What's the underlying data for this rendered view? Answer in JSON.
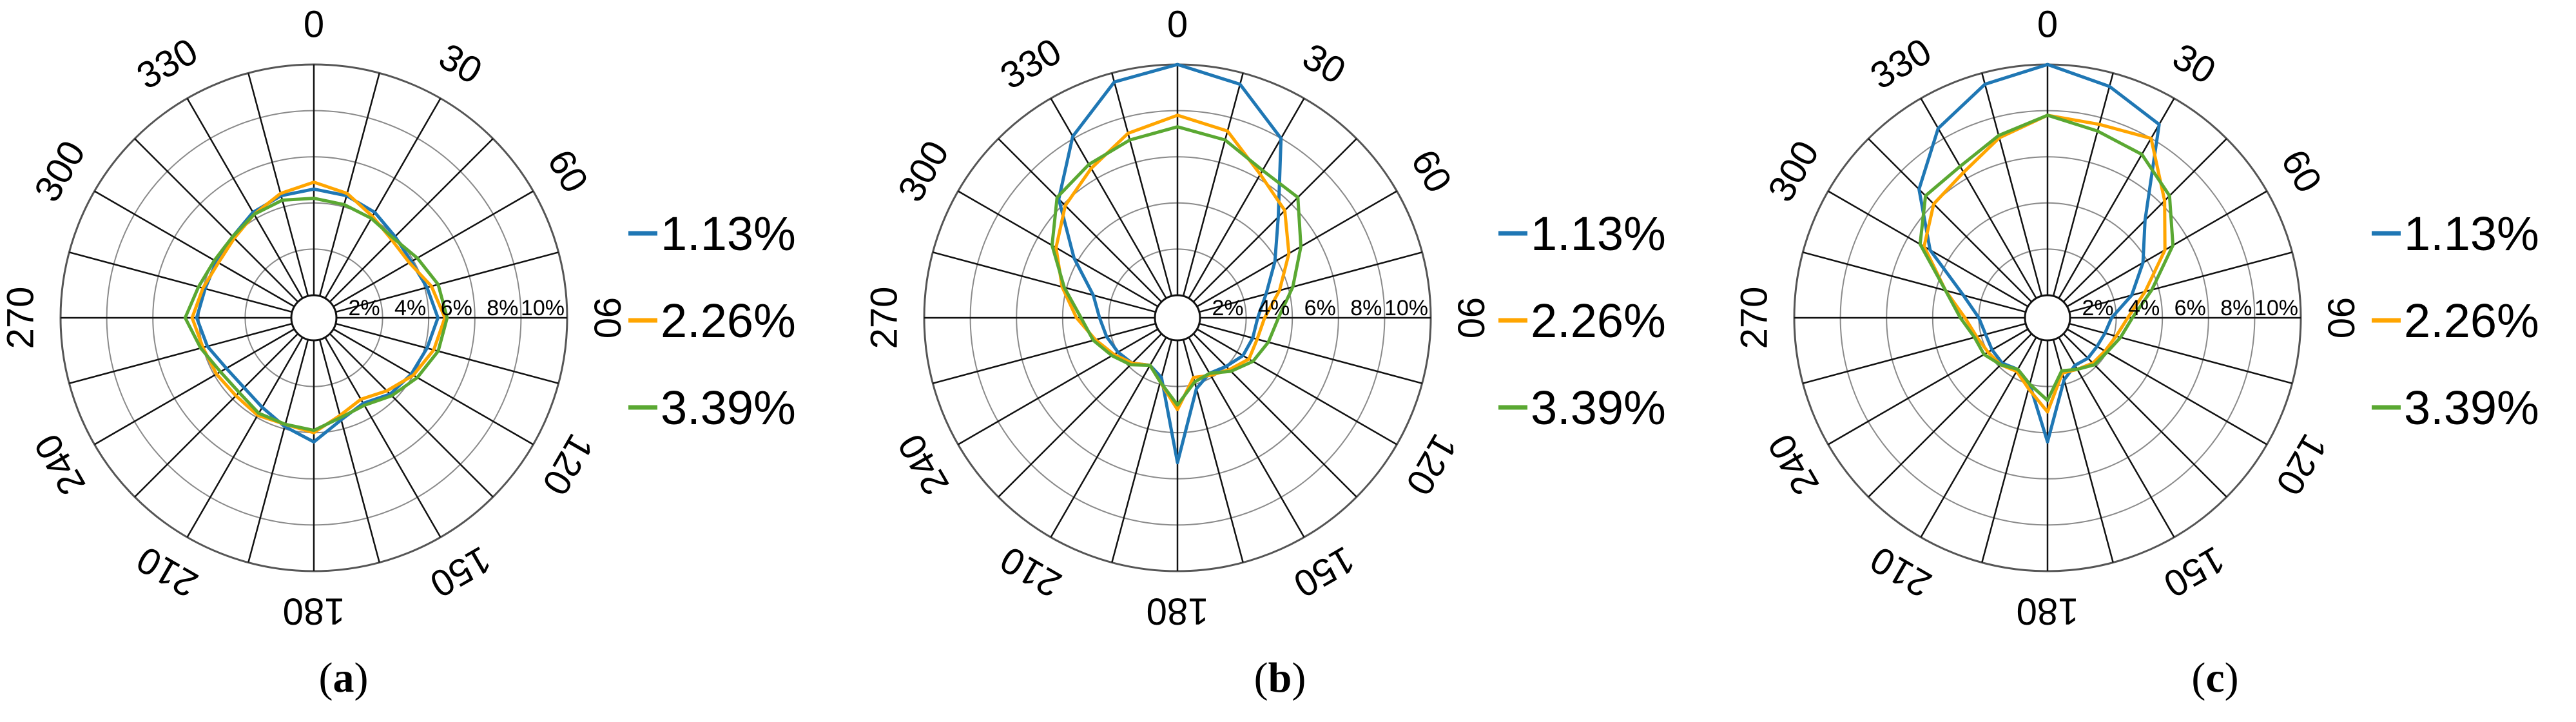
{
  "chart_data": [
    {
      "type": "polar-line",
      "caption": "(a)",
      "angle_ticks": [
        "0",
        "30",
        "60",
        "90",
        "120",
        "150",
        "180",
        "210",
        "240",
        "270",
        "300",
        "330"
      ],
      "radial_ticks": [
        "2%",
        "4%",
        "6%",
        "8%",
        "10%"
      ],
      "rlim": [
        0,
        10
      ],
      "theta": [
        0,
        15,
        30,
        45,
        60,
        75,
        90,
        105,
        120,
        135,
        150,
        165,
        180,
        195,
        210,
        225,
        240,
        255,
        270,
        285,
        300,
        315,
        330,
        345
      ],
      "series": [
        {
          "name": "1.13%",
          "color": "#1f77b4",
          "values": [
            4.6,
            4.5,
            4.3,
            4.0,
            3.9,
            4.1,
            4.4,
            4.1,
            3.9,
            3.7,
            3.3,
            3.6,
            4.4,
            3.9,
            3.5,
            3.3,
            3.4,
            3.8,
            4.1,
            3.9,
            3.9,
            4.0,
            4.3,
            4.5
          ]
        },
        {
          "name": "2.26%",
          "color": "#ffa500",
          "values": [
            4.9,
            4.6,
            4.1,
            3.8,
            3.8,
            4.3,
            4.7,
            4.4,
            4.0,
            3.5,
            3.1,
            3.4,
            4.0,
            3.8,
            3.9,
            3.8,
            3.9,
            4.0,
            4.3,
            4.0,
            3.8,
            3.9,
            4.2,
            4.6
          ]
        },
        {
          "name": "3.39%",
          "color": "#5aa832",
          "values": [
            4.2,
            4.1,
            4.0,
            3.9,
            4.2,
            4.6,
            4.8,
            4.6,
            4.2,
            3.8,
            3.4,
            3.5,
            3.9,
            3.8,
            3.8,
            3.6,
            3.7,
            4.1,
            4.6,
            4.2,
            4.0,
            4.0,
            4.2,
            4.3
          ]
        }
      ]
    },
    {
      "type": "polar-line",
      "caption": "(b)",
      "angle_ticks": [
        "0",
        "30",
        "60",
        "90",
        "120",
        "150",
        "180",
        "210",
        "240",
        "270",
        "300",
        "330"
      ],
      "radial_ticks": [
        "2%",
        "4%",
        "6%",
        "8%",
        "10%"
      ],
      "rlim": [
        0,
        10
      ],
      "theta": [
        0,
        15,
        30,
        45,
        60,
        75,
        90,
        105,
        120,
        135,
        150,
        165,
        180,
        195,
        210,
        225,
        240,
        255,
        270,
        285,
        300,
        315,
        330,
        345
      ],
      "series": [
        {
          "name": "1.13%",
          "color": "#1f77b4",
          "values": [
            10.0,
            9.5,
            8.0,
            5.2,
            3.9,
            3.0,
            2.5,
            2.4,
            2.3,
            2.0,
            1.8,
            2.2,
            5.3,
            1.7,
            1.4,
            1.8,
            2.0,
            2.2,
            2.4,
            2.8,
            4.2,
            6.3,
            8.1,
            9.6
          ]
        },
        {
          "name": "2.26%",
          "color": "#ffa500",
          "values": [
            7.8,
            7.4,
            6.2,
            5.6,
            4.6,
            3.6,
            2.8,
            2.6,
            2.6,
            2.2,
            1.9,
            1.7,
            3.0,
            1.9,
            1.4,
            1.8,
            2.2,
            2.7,
            3.4,
            4.2,
            5.1,
            5.9,
            6.5,
            7.3
          ]
        },
        {
          "name": "3.39%",
          "color": "#5aa832",
          "values": [
            7.3,
            7.0,
            6.4,
            6.4,
            5.2,
            4.2,
            3.4,
            3.1,
            2.8,
            2.3,
            1.8,
            1.9,
            2.8,
            1.9,
            1.4,
            1.9,
            2.3,
            2.8,
            3.2,
            4.1,
            5.3,
            6.4,
            6.7,
            7.0
          ]
        }
      ]
    },
    {
      "type": "polar-line",
      "caption": "(c)",
      "angle_ticks": [
        "0",
        "30",
        "60",
        "90",
        "120",
        "150",
        "180",
        "210",
        "240",
        "270",
        "300",
        "330"
      ],
      "radial_ticks": [
        "2%",
        "4%",
        "6%",
        "8%",
        "10%"
      ],
      "rlim": [
        0,
        10
      ],
      "theta": [
        0,
        15,
        30,
        45,
        60,
        75,
        90,
        105,
        120,
        135,
        150,
        165,
        180,
        195,
        210,
        225,
        240,
        255,
        270,
        285,
        300,
        315,
        330,
        345
      ],
      "series": [
        {
          "name": "1.13%",
          "color": "#1f77b4",
          "values": [
            10.0,
            9.4,
            8.7,
            5.0,
            3.8,
            2.8,
            1.8,
            1.6,
            1.5,
            1.5,
            1.4,
            1.8,
            4.4,
            2.0,
            1.6,
            1.8,
            1.8,
            1.8,
            2.0,
            2.8,
            4.9,
            6.9,
            8.5,
            9.5
          ]
        },
        {
          "name": "2.26%",
          "color": "#ffa500",
          "values": [
            7.8,
            7.7,
            8.0,
            6.2,
            4.9,
            3.4,
            2.5,
            2.1,
            1.9,
            1.8,
            1.6,
            1.5,
            3.1,
            2.2,
            1.7,
            1.9,
            2.0,
            2.2,
            2.6,
            3.6,
            5.2,
            6.0,
            6.3,
            7.1
          ]
        },
        {
          "name": "3.39%",
          "color": "#5aa832",
          "values": [
            7.8,
            7.4,
            7.2,
            6.5,
            5.3,
            3.7,
            2.7,
            2.3,
            2.0,
            1.9,
            1.6,
            1.4,
            2.6,
            2.0,
            1.6,
            1.9,
            2.2,
            2.3,
            2.8,
            3.6,
            5.4,
            6.5,
            6.6,
            7.2
          ]
        }
      ]
    }
  ]
}
